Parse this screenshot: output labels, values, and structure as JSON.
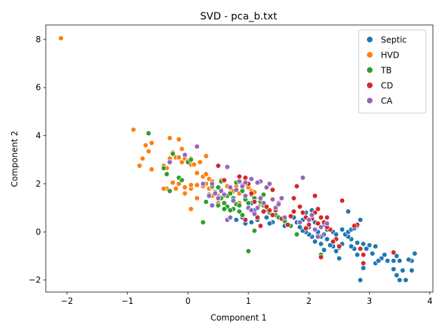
{
  "chart_data": {
    "type": "scatter",
    "title": "SVD - pca_b.txt",
    "xlabel": "Component 1",
    "ylabel": "Component 2",
    "xlim": [
      -2.35,
      4.05
    ],
    "ylim": [
      -2.5,
      8.6
    ],
    "xticks": [
      -2,
      -1,
      0,
      1,
      2,
      3,
      4
    ],
    "yticks": [
      -2,
      0,
      2,
      4,
      6,
      8
    ],
    "grid": false,
    "legend_position": "top-right",
    "series": [
      {
        "name": "Septic",
        "color": "#1f77b4",
        "points": [
          [
            2.85,
            -2.0
          ],
          [
            3.5,
            -2.0
          ],
          [
            3.6,
            -2.0
          ],
          [
            3.7,
            -1.6
          ],
          [
            3.55,
            -1.6
          ],
          [
            3.4,
            -1.55
          ],
          [
            3.45,
            -1.8
          ],
          [
            3.3,
            -1.2
          ],
          [
            3.4,
            -1.2
          ],
          [
            3.5,
            -1.2
          ],
          [
            3.7,
            -1.2
          ],
          [
            3.65,
            -1.15
          ],
          [
            3.75,
            -0.9
          ],
          [
            3.45,
            -1.0
          ],
          [
            3.2,
            -1.1
          ],
          [
            3.25,
            -0.95
          ],
          [
            3.1,
            -1.3
          ],
          [
            3.15,
            -1.2
          ],
          [
            3.05,
            -0.9
          ],
          [
            3.1,
            -0.6
          ],
          [
            3.0,
            -0.55
          ],
          [
            2.95,
            -0.7
          ],
          [
            2.9,
            -1.5
          ],
          [
            2.8,
            -0.95
          ],
          [
            2.75,
            -0.7
          ],
          [
            2.7,
            -0.6
          ],
          [
            2.85,
            -0.7
          ],
          [
            2.9,
            -0.5
          ],
          [
            2.8,
            -0.45
          ],
          [
            2.7,
            -0.3
          ],
          [
            2.65,
            -0.2
          ],
          [
            2.6,
            -0.1
          ],
          [
            2.55,
            -0.5
          ],
          [
            2.5,
            -0.65
          ],
          [
            2.5,
            -1.1
          ],
          [
            2.45,
            -0.8
          ],
          [
            2.4,
            -0.6
          ],
          [
            2.35,
            -0.55
          ],
          [
            2.3,
            -0.3
          ],
          [
            2.25,
            -0.75
          ],
          [
            2.2,
            -0.5
          ],
          [
            2.2,
            -0.2
          ],
          [
            2.15,
            -0.1
          ],
          [
            2.1,
            -0.4
          ],
          [
            2.05,
            -0.2
          ],
          [
            2.0,
            -0.1
          ],
          [
            1.95,
            0.0
          ],
          [
            1.9,
            0.05
          ],
          [
            1.85,
            0.2
          ],
          [
            1.8,
            0.4
          ],
          [
            1.9,
            0.5
          ],
          [
            1.95,
            0.8
          ],
          [
            2.0,
            0.2
          ],
          [
            2.1,
            0.4
          ],
          [
            2.15,
            0.0
          ],
          [
            2.25,
            0.3
          ],
          [
            2.3,
            0.1
          ],
          [
            2.4,
            0.0
          ],
          [
            2.45,
            -0.1
          ],
          [
            2.55,
            0.1
          ],
          [
            2.65,
            0.0
          ],
          [
            2.7,
            0.1
          ],
          [
            2.75,
            0.15
          ],
          [
            2.8,
            0.25
          ],
          [
            2.85,
            0.5
          ],
          [
            2.65,
            0.85
          ],
          [
            1.75,
            0.6
          ],
          [
            1.6,
            0.25
          ],
          [
            1.4,
            0.4
          ],
          [
            1.35,
            0.35
          ],
          [
            1.3,
            0.6
          ],
          [
            1.15,
            0.5
          ],
          [
            1.1,
            0.9
          ],
          [
            1.05,
            1.2
          ],
          [
            0.95,
            0.35
          ],
          [
            0.9,
            0.6
          ],
          [
            0.8,
            0.5
          ],
          [
            1.05,
            0.4
          ],
          [
            2.05,
            0.9
          ]
        ]
      },
      {
        "name": "HVD",
        "color": "#ff7f0e",
        "points": [
          [
            -2.1,
            8.05
          ],
          [
            -0.9,
            4.25
          ],
          [
            -0.6,
            3.7
          ],
          [
            -0.65,
            3.35
          ],
          [
            -0.7,
            3.6
          ],
          [
            -0.8,
            2.75
          ],
          [
            -0.75,
            3.05
          ],
          [
            -0.6,
            2.6
          ],
          [
            -0.4,
            2.75
          ],
          [
            -0.35,
            2.65
          ],
          [
            -0.3,
            3.05
          ],
          [
            -0.3,
            3.9
          ],
          [
            -0.25,
            3.3
          ],
          [
            -0.2,
            3.1
          ],
          [
            -0.15,
            3.1
          ],
          [
            -0.15,
            3.85
          ],
          [
            -0.1,
            3.45
          ],
          [
            -0.1,
            2.9
          ],
          [
            -0.05,
            3.05
          ],
          [
            0.0,
            2.95
          ],
          [
            0.05,
            2.8
          ],
          [
            0.05,
            3.05
          ],
          [
            0.1,
            2.8
          ],
          [
            0.2,
            2.9
          ],
          [
            0.3,
            3.15
          ],
          [
            0.15,
            2.45
          ],
          [
            0.25,
            2.3
          ],
          [
            0.35,
            2.2
          ],
          [
            0.4,
            2.1
          ],
          [
            0.3,
            2.0
          ],
          [
            0.25,
            1.9
          ],
          [
            0.35,
            1.8
          ],
          [
            0.4,
            1.85
          ],
          [
            0.5,
            1.5
          ],
          [
            0.55,
            1.75
          ],
          [
            0.6,
            1.5
          ],
          [
            0.65,
            1.9
          ],
          [
            0.7,
            1.65
          ],
          [
            0.75,
            1.7
          ],
          [
            0.8,
            1.9
          ],
          [
            0.85,
            1.6
          ],
          [
            0.9,
            1.8
          ],
          [
            0.95,
            2.0
          ],
          [
            1.0,
            1.85
          ],
          [
            1.05,
            1.7
          ],
          [
            1.1,
            1.65
          ],
          [
            0.15,
            1.95
          ],
          [
            0.05,
            1.8
          ],
          [
            0.05,
            1.95
          ],
          [
            -0.05,
            1.85
          ],
          [
            -0.05,
            1.6
          ],
          [
            -0.15,
            2.0
          ],
          [
            -0.2,
            1.8
          ],
          [
            -0.25,
            2.05
          ],
          [
            -0.3,
            1.7
          ],
          [
            -0.35,
            1.8
          ],
          [
            -0.4,
            1.8
          ],
          [
            0.15,
            1.4
          ],
          [
            0.05,
            0.95
          ],
          [
            0.4,
            1.5
          ],
          [
            1.2,
            1.15
          ],
          [
            0.5,
            1.2
          ],
          [
            0.55,
            2.15
          ],
          [
            0.3,
            2.4
          ],
          [
            0.85,
            1.2
          ]
        ]
      },
      {
        "name": "TB",
        "color": "#2ca02c",
        "points": [
          [
            -0.65,
            4.1
          ],
          [
            -0.25,
            3.25
          ],
          [
            -0.35,
            2.4
          ],
          [
            -0.4,
            2.65
          ],
          [
            -0.3,
            1.7
          ],
          [
            -0.15,
            2.25
          ],
          [
            -0.1,
            2.15
          ],
          [
            0.0,
            2.9
          ],
          [
            0.05,
            3.0
          ],
          [
            0.25,
            0.4
          ],
          [
            0.3,
            1.25
          ],
          [
            0.35,
            1.55
          ],
          [
            0.4,
            1.9
          ],
          [
            0.45,
            1.65
          ],
          [
            0.5,
            1.1
          ],
          [
            0.55,
            1.4
          ],
          [
            0.6,
            1.2
          ],
          [
            0.65,
            1.05
          ],
          [
            0.65,
            1.5
          ],
          [
            0.7,
            1.6
          ],
          [
            0.75,
            1.4
          ],
          [
            0.8,
            1.15
          ],
          [
            0.85,
            1.1
          ],
          [
            0.9,
            1.7
          ],
          [
            0.95,
            1.35
          ],
          [
            1.0,
            1.2
          ],
          [
            1.05,
            1.55
          ],
          [
            1.1,
            1.4
          ],
          [
            1.15,
            1.0
          ],
          [
            1.2,
            1.25
          ],
          [
            1.25,
            1.1
          ],
          [
            1.3,
            0.9
          ],
          [
            1.35,
            0.8
          ],
          [
            1.45,
            0.7
          ],
          [
            1.5,
            0.6
          ],
          [
            1.55,
            0.55
          ],
          [
            1.6,
            0.45
          ],
          [
            1.65,
            0.3
          ],
          [
            1.7,
            0.25
          ],
          [
            1.1,
            0.05
          ],
          [
            1.0,
            -0.8
          ],
          [
            0.9,
            0.7
          ],
          [
            0.85,
            0.85
          ],
          [
            0.75,
            0.95
          ],
          [
            0.7,
            0.9
          ],
          [
            0.6,
            0.95
          ],
          [
            0.5,
            1.85
          ],
          [
            0.55,
            2.1
          ],
          [
            0.8,
            2.05
          ],
          [
            1.25,
            1.55
          ],
          [
            2.2,
            -0.95
          ],
          [
            1.8,
            -0.1
          ]
        ]
      },
      {
        "name": "CD",
        "color": "#d62728",
        "points": [
          [
            3.4,
            -0.85
          ],
          [
            2.9,
            -1.3
          ],
          [
            2.9,
            -0.95
          ],
          [
            2.85,
            -0.7
          ],
          [
            2.8,
            0.3
          ],
          [
            2.75,
            0.25
          ],
          [
            2.55,
            1.3
          ],
          [
            2.5,
            -0.6
          ],
          [
            2.45,
            -0.3
          ],
          [
            2.4,
            -0.4
          ],
          [
            2.35,
            0.1
          ],
          [
            2.3,
            0.2
          ],
          [
            2.25,
            0.4
          ],
          [
            2.2,
            0.6
          ],
          [
            2.15,
            0.95
          ],
          [
            2.1,
            1.5
          ],
          [
            2.1,
            0.8
          ],
          [
            2.05,
            0.55
          ],
          [
            2.0,
            0.3
          ],
          [
            1.95,
            0.6
          ],
          [
            1.9,
            0.8
          ],
          [
            1.85,
            1.05
          ],
          [
            1.8,
            1.9
          ],
          [
            1.75,
            1.4
          ],
          [
            1.75,
            0.85
          ],
          [
            1.7,
            0.65
          ],
          [
            1.65,
            0.3
          ],
          [
            1.55,
            0.55
          ],
          [
            1.5,
            1.2
          ],
          [
            1.45,
            0.9
          ],
          [
            1.4,
            0.7
          ],
          [
            1.35,
            0.9
          ],
          [
            1.3,
            1.05
          ],
          [
            1.25,
            0.85
          ],
          [
            1.2,
            0.25
          ],
          [
            1.15,
            0.6
          ],
          [
            1.1,
            1.25
          ],
          [
            1.05,
            1.6
          ],
          [
            1.0,
            2.0
          ],
          [
            0.95,
            2.25
          ],
          [
            0.9,
            1.95
          ],
          [
            0.85,
            2.3
          ],
          [
            0.6,
            2.15
          ],
          [
            0.5,
            2.75
          ],
          [
            0.95,
            0.5
          ],
          [
            1.4,
            1.75
          ],
          [
            2.2,
            -1.05
          ],
          [
            2.3,
            0.6
          ],
          [
            2.15,
            0.35
          ],
          [
            1.95,
            0.15
          ]
        ]
      },
      {
        "name": "CA",
        "color": "#9467bd",
        "points": [
          [
            0.15,
            3.55
          ],
          [
            -0.05,
            3.2
          ],
          [
            -0.3,
            2.9
          ],
          [
            0.35,
            1.5
          ],
          [
            0.4,
            1.1
          ],
          [
            0.45,
            1.6
          ],
          [
            0.5,
            1.4
          ],
          [
            0.55,
            1.7
          ],
          [
            0.6,
            1.55
          ],
          [
            0.65,
            2.7
          ],
          [
            0.65,
            0.5
          ],
          [
            0.7,
            0.6
          ],
          [
            0.75,
            1.3
          ],
          [
            0.8,
            1.75
          ],
          [
            0.85,
            2.1
          ],
          [
            0.9,
            1.9
          ],
          [
            0.95,
            1.5
          ],
          [
            1.0,
            1.0
          ],
          [
            1.05,
            0.9
          ],
          [
            1.1,
            0.75
          ],
          [
            1.15,
            1.0
          ],
          [
            1.2,
            1.4
          ],
          [
            1.25,
            1.2
          ],
          [
            1.3,
            1.85
          ],
          [
            1.35,
            2.0
          ],
          [
            1.4,
            1.35
          ],
          [
            1.45,
            1.0
          ],
          [
            1.5,
            1.15
          ],
          [
            1.55,
            1.4
          ],
          [
            1.6,
            0.6
          ],
          [
            1.9,
            2.25
          ],
          [
            2.0,
            0.5
          ],
          [
            2.05,
            0.7
          ],
          [
            2.1,
            0.1
          ],
          [
            2.15,
            -0.2
          ],
          [
            2.2,
            0.2
          ],
          [
            2.25,
            -0.1
          ],
          [
            2.3,
            0.35
          ],
          [
            1.85,
            0.4
          ],
          [
            0.95,
            2.05
          ],
          [
            1.05,
            2.2
          ],
          [
            1.2,
            2.1
          ],
          [
            0.7,
            1.85
          ],
          [
            1.15,
            2.05
          ],
          [
            0.4,
            2.0
          ],
          [
            0.25,
            2.0
          ]
        ]
      }
    ]
  }
}
